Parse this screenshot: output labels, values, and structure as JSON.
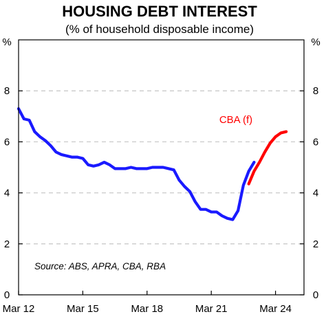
{
  "chart_data": {
    "type": "line",
    "title": "HOUSING DEBT INTEREST",
    "subtitle": "(% of household disposable income)",
    "ylabel_left": "%",
    "ylabel_right": "%",
    "ylim": [
      0,
      10
    ],
    "yticks": [
      0,
      2,
      4,
      6,
      8
    ],
    "xlim": [
      2012.0,
      2025.33
    ],
    "xticks": [
      {
        "value": 2012.0,
        "label": "Mar 12"
      },
      {
        "value": 2015.0,
        "label": "Mar 15"
      },
      {
        "value": 2018.0,
        "label": "Mar 18"
      },
      {
        "value": 2021.0,
        "label": "Mar 21"
      },
      {
        "value": 2024.0,
        "label": "Mar 24"
      }
    ],
    "grid": true,
    "source": "Source: ABS, APRA, CBA, RBA",
    "series": [
      {
        "color": "#1a1aff",
        "x": [
          2012.0,
          2012.25,
          2012.5,
          2012.75,
          2013.0,
          2013.25,
          2013.5,
          2013.75,
          2014.0,
          2014.25,
          2014.5,
          2014.75,
          2015.0,
          2015.25,
          2015.5,
          2015.75,
          2016.0,
          2016.25,
          2016.5,
          2016.75,
          2017.0,
          2017.25,
          2017.5,
          2017.75,
          2018.0,
          2018.25,
          2018.5,
          2018.75,
          2019.0,
          2019.25,
          2019.5,
          2019.75,
          2020.0,
          2020.25,
          2020.5,
          2020.75,
          2021.0,
          2021.25,
          2021.5,
          2021.75,
          2022.0,
          2022.25,
          2022.5,
          2022.75,
          2023.0
        ],
        "values": [
          7.3,
          6.9,
          6.85,
          6.4,
          6.2,
          6.05,
          5.85,
          5.6,
          5.5,
          5.45,
          5.4,
          5.4,
          5.35,
          5.1,
          5.05,
          5.1,
          5.2,
          5.1,
          4.95,
          4.95,
          4.95,
          5.0,
          4.95,
          4.95,
          4.95,
          5.0,
          5.0,
          5.0,
          4.95,
          4.9,
          4.5,
          4.25,
          4.05,
          3.65,
          3.35,
          3.35,
          3.25,
          3.25,
          3.1,
          3.0,
          2.95,
          3.3,
          4.3,
          4.85,
          5.2
        ]
      },
      {
        "name": "CBA (f)",
        "color": "#ff0000",
        "x": [
          2022.75,
          2023.0,
          2023.25,
          2023.5,
          2023.75,
          2024.0,
          2024.25,
          2024.5
        ],
        "values": [
          4.35,
          4.85,
          5.2,
          5.6,
          5.95,
          6.2,
          6.35,
          6.4
        ]
      }
    ]
  }
}
